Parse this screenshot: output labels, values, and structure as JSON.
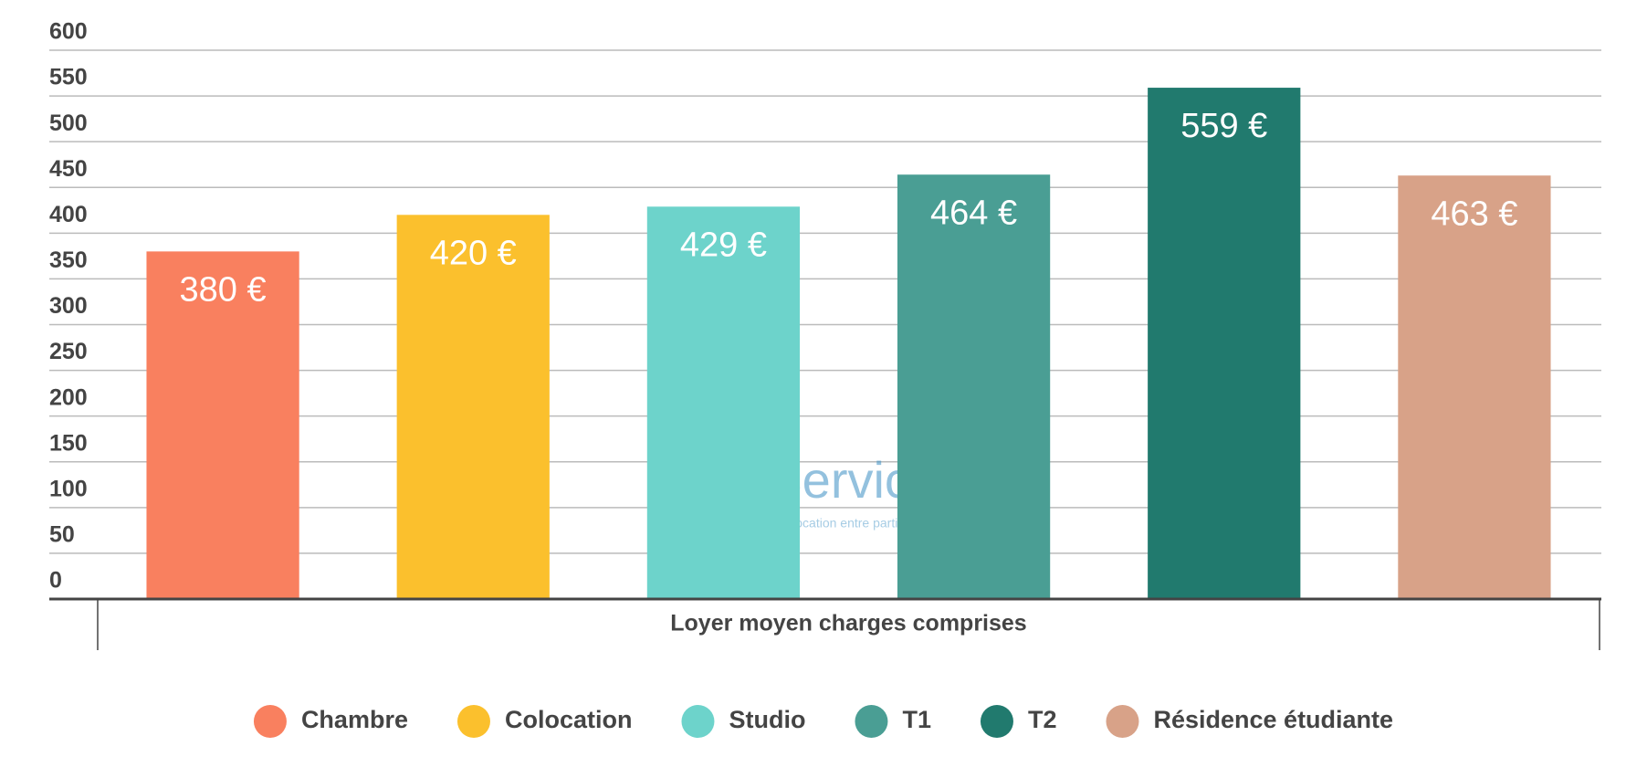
{
  "chart_data": {
    "type": "bar",
    "categories": [
      "Loyer moyen charges comprises"
    ],
    "series": [
      {
        "name": "Chambre",
        "color": "#f9805f",
        "values": [
          380
        ],
        "value_labels": [
          "380 €"
        ]
      },
      {
        "name": "Colocation",
        "color": "#fbc02d",
        "values": [
          420
        ],
        "value_labels": [
          "420 €"
        ]
      },
      {
        "name": "Studio",
        "color": "#6dd3cb",
        "values": [
          429
        ],
        "value_labels": [
          "429 €"
        ]
      },
      {
        "name": "T1",
        "color": "#4a9e94",
        "values": [
          464
        ],
        "value_labels": [
          "464 €"
        ]
      },
      {
        "name": "T2",
        "color": "#217a6e",
        "values": [
          559
        ],
        "value_labels": [
          "559 €"
        ]
      },
      {
        "name": "Résidence étudiante",
        "color": "#d8a288",
        "values": [
          463
        ],
        "value_labels": [
          "463 €"
        ]
      }
    ],
    "ylim": [
      0,
      600
    ],
    "yticks": [
      0,
      50,
      100,
      150,
      200,
      250,
      300,
      350,
      400,
      450,
      500,
      550,
      600
    ],
    "grid": true,
    "legend": "bottom",
    "watermark": {
      "name": "LOCService.fr",
      "tagline": "Location & Colocation entre particuliers"
    }
  }
}
